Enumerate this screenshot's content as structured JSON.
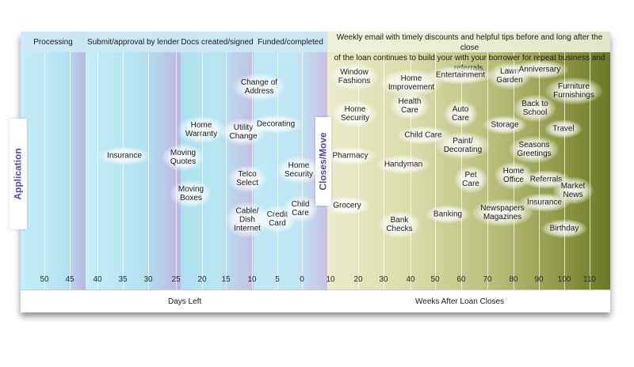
{
  "headers": {
    "processing": "Processing",
    "submit": "Submit/approval by lender",
    "docs": "Docs created/signed",
    "funded": "Funded/completed",
    "email_line1": "Weekly email with timely discounts and helpful tips before and long after the close",
    "email_line2": "of the loan continues to build your with your borrower for repeat business and referrals."
  },
  "side_labels": {
    "application": "Application",
    "closes_move": "Closes/Move"
  },
  "axis": {
    "days_left_label": "Days Left",
    "weeks_after_label": "Weeks After  Loan Closes",
    "days_ticks": [
      "50",
      "45",
      "40",
      "35",
      "30",
      "25",
      "20",
      "15",
      "10",
      "5",
      "0"
    ],
    "weeks_ticks": [
      "10",
      "20",
      "30",
      "40",
      "50",
      "60",
      "70",
      "80",
      "90",
      "100",
      "110"
    ]
  },
  "items_left": [
    {
      "l1": "Insurance",
      "l2": ""
    },
    {
      "l1": "Moving",
      "l2": "Quotes"
    },
    {
      "l1": "Moving",
      "l2": "Boxes"
    },
    {
      "l1": "Home",
      "l2": "Warranty"
    },
    {
      "l1": "Utility",
      "l2": "Change"
    },
    {
      "l1": "Telco",
      "l2": "Select"
    },
    {
      "l1": "Cable/",
      "l2": "Dish",
      "l3": "Internet"
    },
    {
      "l1": "Change of",
      "l2": "Address"
    },
    {
      "l1": "Decorating",
      "l2": ""
    },
    {
      "l1": "Credit",
      "l2": "Card"
    },
    {
      "l1": "Home",
      "l2": "Security"
    },
    {
      "l1": "Child",
      "l2": "Care"
    }
  ],
  "items_right": [
    {
      "l1": "Window",
      "l2": "Fashions"
    },
    {
      "l1": "Home",
      "l2": "Security"
    },
    {
      "l1": "Pharmacy",
      "l2": ""
    },
    {
      "l1": "Grocery",
      "l2": ""
    },
    {
      "l1": "Home",
      "l2": "Improvement"
    },
    {
      "l1": "Health",
      "l2": "Care"
    },
    {
      "l1": "Child Care",
      "l2": ""
    },
    {
      "l1": "Handyman",
      "l2": ""
    },
    {
      "l1": "Bank",
      "l2": "Checks"
    },
    {
      "l1": "Entertainment",
      "l2": ""
    },
    {
      "l1": "Auto",
      "l2": "Care"
    },
    {
      "l1": "Paint/",
      "l2": "Decorating"
    },
    {
      "l1": "Pet",
      "l2": "Care"
    },
    {
      "l1": "Banking",
      "l2": ""
    },
    {
      "l1": "Lawn",
      "l2": "Garden"
    },
    {
      "l1": "Storage",
      "l2": ""
    },
    {
      "l1": "Anniversary",
      "l2": ""
    },
    {
      "l1": "Back to",
      "l2": "School"
    },
    {
      "l1": "Seasons",
      "l2": "Greetings"
    },
    {
      "l1": "Home",
      "l2": "Office"
    },
    {
      "l1": "Referrals",
      "l2": ""
    },
    {
      "l1": "Newspapers",
      "l2": "Magazines"
    },
    {
      "l1": "Insurance",
      "l2": ""
    },
    {
      "l1": "Furniture",
      "l2": "Furnishings"
    },
    {
      "l1": "Travel",
      "l2": ""
    },
    {
      "l1": "Market",
      "l2": "News"
    },
    {
      "l1": "Birthday",
      "l2": ""
    }
  ],
  "colors": {
    "left_band_light": "#c2ebf6",
    "left_band_purple": "#c3bde4",
    "side_tab_text": "#5548b0",
    "right_gradient_dark": "#6b7722"
  }
}
